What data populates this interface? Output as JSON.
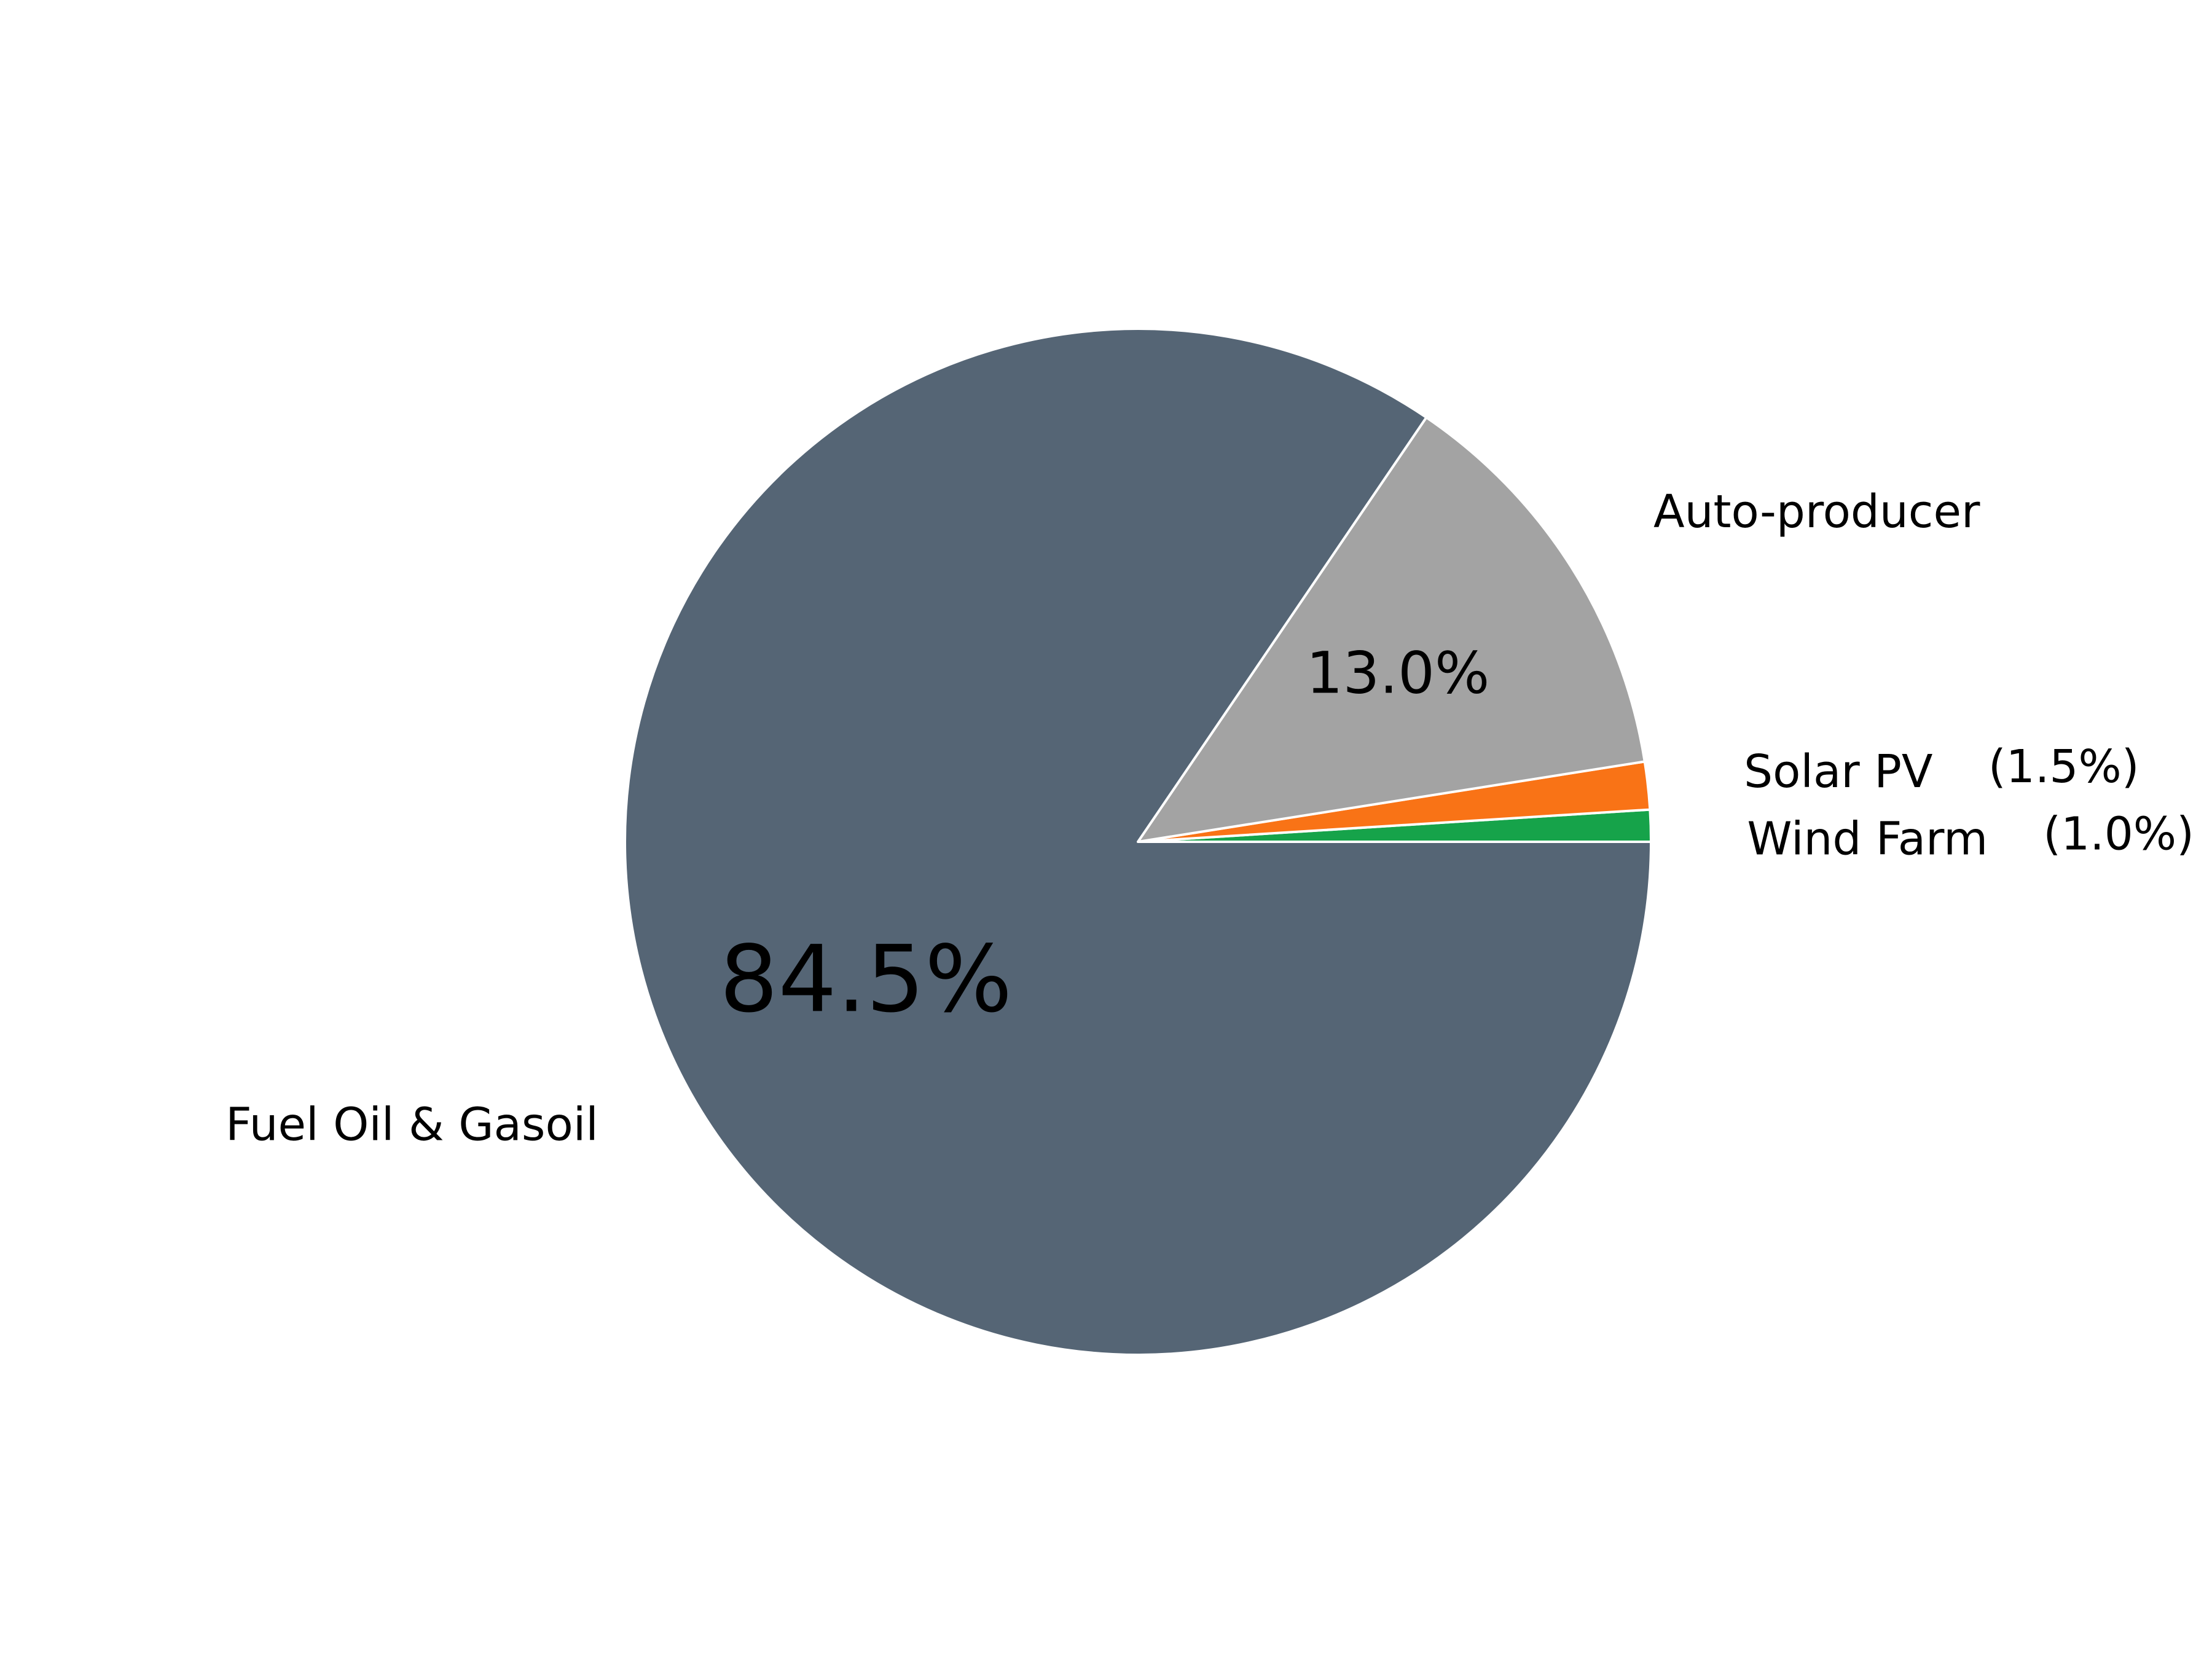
{
  "chart_data": {
    "type": "pie",
    "title": "",
    "start_angle_deg": 0,
    "direction": "counterclockwise",
    "slices": [
      {
        "label": "Wind Farm",
        "value": 1.0,
        "pct_label": "(1.0%)",
        "color": "#16a34a",
        "pct_placement": "outside"
      },
      {
        "label": "Solar PV",
        "value": 1.5,
        "pct_label": "(1.5%)",
        "color": "#f97316",
        "pct_placement": "outside"
      },
      {
        "label": "Auto-producer",
        "value": 13.0,
        "pct_label": "13.0%",
        "color": "#a3a3a3",
        "pct_placement": "inside"
      },
      {
        "label": "Fuel Oil & Gasoil",
        "value": 84.5,
        "pct_label": "84.5%",
        "color": "#556575",
        "pct_placement": "inside"
      }
    ],
    "edge_color": "#ffffff"
  }
}
